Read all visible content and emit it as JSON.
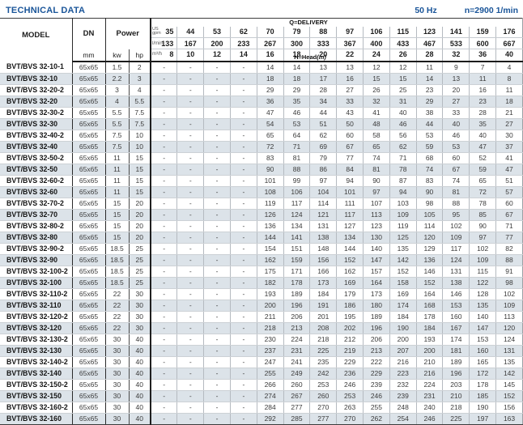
{
  "page": {
    "title": "TECHNICAL DATA",
    "frequency": "50 Hz",
    "speed": "n=2900 1/min"
  },
  "table": {
    "header": {
      "model_label": "MODEL",
      "dn_label": "DN",
      "dn_unit": "mm",
      "power_label": "Power",
      "power_units": [
        "kw",
        "hp"
      ],
      "delivery_label": "Q=DELIVERY",
      "head_label": "H=Head",
      "head_unit": "(m)",
      "gpm_unit_line1": "US",
      "gpm_unit_line2": "gpm",
      "lmin_unit": "l/min",
      "m3h_unit": "m³/h",
      "gpm_values": [
        "35",
        "44",
        "53",
        "62",
        "70",
        "79",
        "88",
        "97",
        "106",
        "115",
        "123",
        "141",
        "159",
        "176"
      ],
      "lmin_values": [
        "133",
        "167",
        "200",
        "233",
        "267",
        "300",
        "333",
        "367",
        "400",
        "433",
        "467",
        "533",
        "600",
        "667"
      ],
      "m3h_values": [
        "8",
        "10",
        "12",
        "14",
        "16",
        "18",
        "20",
        "22",
        "24",
        "26",
        "28",
        "32",
        "36",
        "40"
      ]
    },
    "rows": [
      {
        "model": "BVT/BVS 32-10-1",
        "dn": "65x65",
        "kw": "1.5",
        "hp": "2",
        "head": [
          "-",
          "-",
          "-",
          "-",
          "14",
          "14",
          "13",
          "13",
          "12",
          "12",
          "11",
          "9",
          "7",
          "4"
        ]
      },
      {
        "model": "BVT/BVS 32-10",
        "dn": "65x65",
        "kw": "2.2",
        "hp": "3",
        "head": [
          "-",
          "-",
          "-",
          "-",
          "18",
          "18",
          "17",
          "16",
          "15",
          "15",
          "14",
          "13",
          "11",
          "8"
        ]
      },
      {
        "model": "BVT/BVS 32-20-2",
        "dn": "65x65",
        "kw": "3",
        "hp": "4",
        "head": [
          "-",
          "-",
          "-",
          "-",
          "29",
          "29",
          "28",
          "27",
          "26",
          "25",
          "23",
          "20",
          "16",
          "11"
        ]
      },
      {
        "model": "BVT/BVS 32-20",
        "dn": "65x65",
        "kw": "4",
        "hp": "5.5",
        "head": [
          "-",
          "-",
          "-",
          "-",
          "36",
          "35",
          "34",
          "33",
          "32",
          "31",
          "29",
          "27",
          "23",
          "18"
        ]
      },
      {
        "model": "BVT/BVS 32-30-2",
        "dn": "65x65",
        "kw": "5.5",
        "hp": "7.5",
        "head": [
          "-",
          "-",
          "-",
          "-",
          "47",
          "46",
          "44",
          "43",
          "41",
          "40",
          "38",
          "33",
          "28",
          "21"
        ]
      },
      {
        "model": "BVT/BVS 32-30",
        "dn": "65x65",
        "kw": "5.5",
        "hp": "7.5",
        "head": [
          "-",
          "-",
          "-",
          "-",
          "54",
          "53",
          "51",
          "50",
          "48",
          "46",
          "44",
          "40",
          "35",
          "27"
        ]
      },
      {
        "model": "BVT/BVS 32-40-2",
        "dn": "65x65",
        "kw": "7.5",
        "hp": "10",
        "head": [
          "-",
          "-",
          "-",
          "-",
          "65",
          "64",
          "62",
          "60",
          "58",
          "56",
          "53",
          "46",
          "40",
          "30"
        ]
      },
      {
        "model": "BVT/BVS 32-40",
        "dn": "65x65",
        "kw": "7.5",
        "hp": "10",
        "head": [
          "-",
          "-",
          "-",
          "-",
          "72",
          "71",
          "69",
          "67",
          "65",
          "62",
          "59",
          "53",
          "47",
          "37"
        ]
      },
      {
        "model": "BVT/BVS 32-50-2",
        "dn": "65x65",
        "kw": "11",
        "hp": "15",
        "head": [
          "-",
          "-",
          "-",
          "-",
          "83",
          "81",
          "79",
          "77",
          "74",
          "71",
          "68",
          "60",
          "52",
          "41"
        ]
      },
      {
        "model": "BVT/BVS 32-50",
        "dn": "65x65",
        "kw": "11",
        "hp": "15",
        "head": [
          "-",
          "-",
          "-",
          "-",
          "90",
          "88",
          "86",
          "84",
          "81",
          "78",
          "74",
          "67",
          "59",
          "47"
        ]
      },
      {
        "model": "BVT/BVS 32-60-2",
        "dn": "65x65",
        "kw": "11",
        "hp": "15",
        "head": [
          "-",
          "-",
          "-",
          "-",
          "101",
          "99",
          "97",
          "94",
          "90",
          "87",
          "83",
          "74",
          "65",
          "51"
        ]
      },
      {
        "model": "BVT/BVS 32-60",
        "dn": "65x65",
        "kw": "11",
        "hp": "15",
        "head": [
          "-",
          "-",
          "-",
          "-",
          "108",
          "106",
          "104",
          "101",
          "97",
          "94",
          "90",
          "81",
          "72",
          "57"
        ]
      },
      {
        "model": "BVT/BVS 32-70-2",
        "dn": "65x65",
        "kw": "15",
        "hp": "20",
        "head": [
          "-",
          "-",
          "-",
          "-",
          "119",
          "117",
          "114",
          "111",
          "107",
          "103",
          "98",
          "88",
          "78",
          "60"
        ]
      },
      {
        "model": "BVT/BVS 32-70",
        "dn": "65x65",
        "kw": "15",
        "hp": "20",
        "head": [
          "-",
          "-",
          "-",
          "-",
          "126",
          "124",
          "121",
          "117",
          "113",
          "109",
          "105",
          "95",
          "85",
          "67"
        ]
      },
      {
        "model": "BVT/BVS 32-80-2",
        "dn": "65x65",
        "kw": "15",
        "hp": "20",
        "head": [
          "-",
          "-",
          "-",
          "-",
          "136",
          "134",
          "131",
          "127",
          "123",
          "119",
          "114",
          "102",
          "90",
          "71"
        ]
      },
      {
        "model": "BVT/BVS 32-80",
        "dn": "65x65",
        "kw": "15",
        "hp": "20",
        "head": [
          "-",
          "-",
          "-",
          "-",
          "144",
          "141",
          "138",
          "134",
          "130",
          "125",
          "120",
          "109",
          "97",
          "77"
        ]
      },
      {
        "model": "BVT/BVS 32-90-2",
        "dn": "65x65",
        "kw": "18.5",
        "hp": "25",
        "head": [
          "-",
          "-",
          "-",
          "-",
          "154",
          "151",
          "148",
          "144",
          "140",
          "135",
          "129",
          "117",
          "102",
          "82"
        ]
      },
      {
        "model": "BVT/BVS 32-90",
        "dn": "65x65",
        "kw": "18.5",
        "hp": "25",
        "head": [
          "-",
          "-",
          "-",
          "-",
          "162",
          "159",
          "156",
          "152",
          "147",
          "142",
          "136",
          "124",
          "109",
          "88"
        ]
      },
      {
        "model": "BVT/BVS 32-100-2",
        "dn": "65x65",
        "kw": "18.5",
        "hp": "25",
        "head": [
          "-",
          "-",
          "-",
          "-",
          "175",
          "171",
          "166",
          "162",
          "157",
          "152",
          "146",
          "131",
          "115",
          "91"
        ]
      },
      {
        "model": "BVT/BVS 32-100",
        "dn": "65x65",
        "kw": "18.5",
        "hp": "25",
        "head": [
          "-",
          "-",
          "-",
          "-",
          "182",
          "178",
          "173",
          "169",
          "164",
          "158",
          "152",
          "138",
          "122",
          "98"
        ]
      },
      {
        "model": "BVT/BVS 32-110-2",
        "dn": "65x65",
        "kw": "22",
        "hp": "30",
        "head": [
          "-",
          "-",
          "-",
          "-",
          "193",
          "189",
          "184",
          "179",
          "173",
          "169",
          "164",
          "146",
          "128",
          "102"
        ]
      },
      {
        "model": "BVT/BVS 32-110",
        "dn": "65x65",
        "kw": "22",
        "hp": "30",
        "head": [
          "-",
          "-",
          "-",
          "-",
          "200",
          "196",
          "191",
          "186",
          "180",
          "174",
          "168",
          "153",
          "135",
          "109"
        ]
      },
      {
        "model": "BVT/BVS 32-120-2",
        "dn": "65x65",
        "kw": "22",
        "hp": "30",
        "head": [
          "-",
          "-",
          "-",
          "-",
          "211",
          "206",
          "201",
          "195",
          "189",
          "184",
          "178",
          "160",
          "140",
          "113"
        ]
      },
      {
        "model": "BVT/BVS 32-120",
        "dn": "65x65",
        "kw": "22",
        "hp": "30",
        "head": [
          "-",
          "-",
          "-",
          "-",
          "218",
          "213",
          "208",
          "202",
          "196",
          "190",
          "184",
          "167",
          "147",
          "120"
        ]
      },
      {
        "model": "BVT/BVS 32-130-2",
        "dn": "65x65",
        "kw": "30",
        "hp": "40",
        "head": [
          "-",
          "-",
          "-",
          "-",
          "230",
          "224",
          "218",
          "212",
          "206",
          "200",
          "193",
          "174",
          "153",
          "124"
        ]
      },
      {
        "model": "BVT/BVS 32-130",
        "dn": "65x65",
        "kw": "30",
        "hp": "40",
        "head": [
          "-",
          "-",
          "-",
          "-",
          "237",
          "231",
          "225",
          "219",
          "213",
          "207",
          "200",
          "181",
          "160",
          "131"
        ]
      },
      {
        "model": "BVT/BVS 32-140-2",
        "dn": "65x65",
        "kw": "30",
        "hp": "40",
        "head": [
          "-",
          "-",
          "-",
          "-",
          "247",
          "241",
          "235",
          "229",
          "222",
          "216",
          "210",
          "189",
          "165",
          "135"
        ]
      },
      {
        "model": "BVT/BVS 32-140",
        "dn": "65x65",
        "kw": "30",
        "hp": "40",
        "head": [
          "-",
          "-",
          "-",
          "-",
          "255",
          "249",
          "242",
          "236",
          "229",
          "223",
          "216",
          "196",
          "172",
          "142"
        ]
      },
      {
        "model": "BVT/BVS 32-150-2",
        "dn": "65x65",
        "kw": "30",
        "hp": "40",
        "head": [
          "-",
          "-",
          "-",
          "-",
          "266",
          "260",
          "253",
          "246",
          "239",
          "232",
          "224",
          "203",
          "178",
          "145"
        ]
      },
      {
        "model": "BVT/BVS 32-150",
        "dn": "65x65",
        "kw": "30",
        "hp": "40",
        "head": [
          "-",
          "-",
          "-",
          "-",
          "274",
          "267",
          "260",
          "253",
          "246",
          "239",
          "231",
          "210",
          "185",
          "152"
        ]
      },
      {
        "model": "BVT/BVS 32-160-2",
        "dn": "65x65",
        "kw": "30",
        "hp": "40",
        "head": [
          "-",
          "-",
          "-",
          "-",
          "284",
          "277",
          "270",
          "263",
          "255",
          "248",
          "240",
          "218",
          "190",
          "156"
        ]
      },
      {
        "model": "BVT/BVS 32-160",
        "dn": "65x65",
        "kw": "30",
        "hp": "40",
        "head": [
          "-",
          "-",
          "-",
          "-",
          "292",
          "285",
          "277",
          "270",
          "262",
          "254",
          "246",
          "225",
          "197",
          "163"
        ]
      }
    ]
  }
}
